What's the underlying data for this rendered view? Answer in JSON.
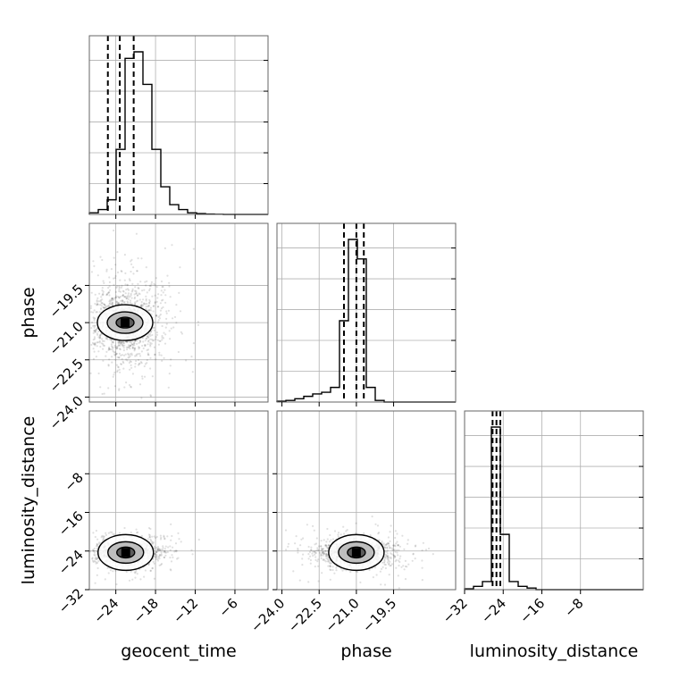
{
  "chart_data": {
    "type": "corner",
    "variables": [
      "geocent_time",
      "phase",
      "luminosity_distance"
    ],
    "axis_labels": {
      "x": [
        "geocent_time",
        "phase",
        "luminosity_distance"
      ],
      "y_row1": "phase",
      "y_row2": "luminosity_distance"
    },
    "ranges": {
      "geocent_time": [
        -28,
        -1
      ],
      "phase": [
        -24.2,
        -17.0
      ],
      "luminosity_distance": [
        -32,
        5
      ]
    },
    "ticks": {
      "geocent_time": [
        -24,
        -18,
        -12,
        -6
      ],
      "phase": [
        -24.0,
        -22.5,
        -21.0,
        -19.5
      ],
      "luminosity_distance": [
        -32,
        -24,
        -16,
        -8
      ]
    },
    "tick_labels": {
      "geocent_time": [
        "−24",
        "−18",
        "−12",
        "−6"
      ],
      "phase": [
        "−24.0",
        "−22.5",
        "−21.0",
        "−19.5"
      ],
      "luminosity_distance": [
        "−32",
        "−24",
        "−16",
        "−8"
      ]
    },
    "quantiles": {
      "geocent_time": [
        -25.2,
        -23.4,
        -21.3
      ],
      "phase": [
        -21.5,
        -21.0,
        -20.7
      ],
      "luminosity_distance": [
        -26.2,
        -25.4,
        -24.6
      ]
    },
    "hist_geocent_time": {
      "edges": [
        -28.0,
        -26.65,
        -25.3,
        -23.95,
        -22.6,
        -21.25,
        -19.9,
        -18.55,
        -17.2,
        -15.85,
        -14.5,
        -13.15,
        -11.8,
        -10.45,
        -9.1,
        -7.75,
        -6.4,
        -5.05,
        -3.7,
        -2.35,
        -1.0
      ],
      "counts": [
        0.01,
        0.03,
        0.09,
        0.4,
        0.96,
        1.0,
        0.8,
        0.4,
        0.17,
        0.06,
        0.03,
        0.01,
        0.005,
        0.002,
        0.001,
        0,
        0,
        0,
        0,
        0
      ]
    },
    "hist_phase": {
      "edges": [
        -24.2,
        -23.84,
        -23.48,
        -23.12,
        -22.76,
        -22.4,
        -22.04,
        -21.68,
        -21.32,
        -20.96,
        -20.6,
        -20.24,
        -19.88,
        -19.52,
        -19.16,
        -18.8,
        -18.44,
        -18.08,
        -17.72,
        -17.36,
        -17.0
      ],
      "counts": [
        0.005,
        0.01,
        0.02,
        0.035,
        0.05,
        0.06,
        0.09,
        0.5,
        1.0,
        0.88,
        0.09,
        0.01,
        0,
        0,
        0,
        0,
        0,
        0,
        0,
        0
      ]
    },
    "hist_luminosity_distance": {
      "edges": [
        -32.0,
        -30.15,
        -28.3,
        -26.45,
        -24.6,
        -22.75,
        -20.9,
        -19.05,
        -17.2,
        -15.35,
        -13.5,
        -11.65,
        -9.8,
        -7.95,
        -6.1,
        -4.25,
        -2.4,
        -0.55,
        1.3,
        3.15,
        5.0
      ],
      "counts": [
        0.005,
        0.02,
        0.05,
        1.0,
        0.34,
        0.05,
        0.02,
        0.01,
        0,
        0,
        0,
        0,
        0,
        0,
        0,
        0,
        0,
        0,
        0,
        0
      ]
    },
    "scatter_centers": {
      "phase_vs_geocent_time": {
        "x": -22.6,
        "y": -21.0,
        "sx": 2.2,
        "sy": 0.65
      },
      "luminosity_distance_vs_geocent_time": {
        "x": -22.5,
        "y": -24.3,
        "sx": 2.0,
        "sy": 1.1
      },
      "luminosity_distance_vs_phase": {
        "x": -21.0,
        "y": -24.3,
        "sx": 0.6,
        "sy": 1.2
      }
    },
    "grid": true
  }
}
